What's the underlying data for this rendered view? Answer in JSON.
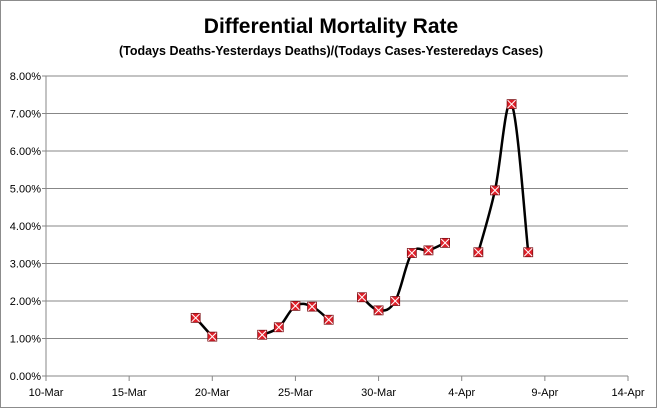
{
  "chart_data": {
    "type": "line",
    "title": "Differential Mortality Rate",
    "subtitle": "(Todays Deaths-Yesterdays Deaths)/(Todays Cases-Yesteredays Cases)",
    "xlabel": "",
    "ylabel": "",
    "x_tick_labels": [
      "10-Mar",
      "15-Mar",
      "20-Mar",
      "25-Mar",
      "30-Mar",
      "4-Apr",
      "9-Apr",
      "14-Apr"
    ],
    "y_tick_labels": [
      "0.00%",
      "1.00%",
      "2.00%",
      "3.00%",
      "4.00%",
      "5.00%",
      "6.00%",
      "7.00%",
      "8.00%"
    ],
    "xlim": [
      "10-Mar",
      "14-Apr"
    ],
    "ylim": [
      0,
      0.08
    ],
    "grid": "horizontal",
    "legend": "none",
    "line_color": "#000000",
    "marker_color": "#e0202a",
    "series": [
      {
        "segments": [
          [
            {
              "x": "19-Mar",
              "y": 0.0155
            },
            {
              "x": "20-Mar",
              "y": 0.0105
            }
          ],
          [
            {
              "x": "23-Mar",
              "y": 0.011
            },
            {
              "x": "24-Mar",
              "y": 0.013
            },
            {
              "x": "25-Mar",
              "y": 0.0187
            },
            {
              "x": "26-Mar",
              "y": 0.0185
            },
            {
              "x": "27-Mar",
              "y": 0.015
            }
          ],
          [
            {
              "x": "29-Mar",
              "y": 0.021
            },
            {
              "x": "30-Mar",
              "y": 0.0175
            },
            {
              "x": "31-Mar",
              "y": 0.02
            },
            {
              "x": "1-Apr",
              "y": 0.0328
            },
            {
              "x": "2-Apr",
              "y": 0.0335
            },
            {
              "x": "3-Apr",
              "y": 0.0355
            }
          ],
          [
            {
              "x": "5-Apr",
              "y": 0.033
            },
            {
              "x": "6-Apr",
              "y": 0.0495
            },
            {
              "x": "7-Apr",
              "y": 0.0725
            },
            {
              "x": "8-Apr",
              "y": 0.033
            }
          ]
        ]
      }
    ]
  }
}
